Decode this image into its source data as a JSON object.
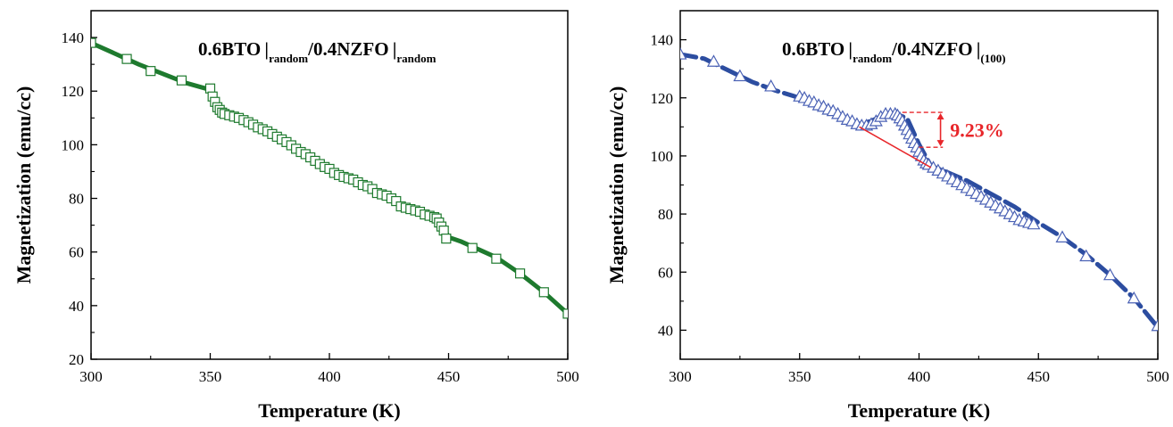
{
  "chart_data": [
    {
      "type": "line",
      "title_parts": {
        "a": "0.6BTO",
        "b": "random",
        "c": "/0.4NZFO",
        "d": "random"
      },
      "xlabel": "Temperature (K)",
      "ylabel": "Magnetization (emu/cc)",
      "xlim": [
        300,
        500
      ],
      "ylim": [
        20,
        150
      ],
      "xticks": [
        300,
        350,
        400,
        450,
        500
      ],
      "yticks": [
        20,
        40,
        60,
        80,
        100,
        120,
        140
      ],
      "grid": false,
      "line_color": "#1e7a2e",
      "marker_color": "#1e7a2e",
      "marker": "square",
      "line": {
        "x": [
          300,
          310,
          320,
          330,
          340,
          350,
          352,
          354,
          356,
          360,
          370,
          380,
          390,
          400,
          410,
          420,
          430,
          440,
          445,
          448,
          450,
          455,
          460,
          470,
          480,
          490,
          495,
          500
        ],
        "y": [
          138,
          134,
          130,
          126.5,
          123,
          120.5,
          117,
          113,
          111.5,
          110.5,
          106.5,
          102,
          96.5,
          91,
          87,
          82,
          77,
          73.5,
          72,
          69,
          65.5,
          64,
          62,
          58,
          52,
          45,
          41,
          37
        ]
      },
      "markers": {
        "x": [
          300,
          315,
          325,
          338,
          350,
          351,
          352,
          353,
          354,
          355,
          356,
          358,
          360,
          362,
          364,
          366,
          368,
          370,
          372,
          374,
          376,
          378,
          380,
          382,
          384,
          386,
          388,
          390,
          392,
          394,
          396,
          398,
          400,
          402,
          404,
          406,
          408,
          410,
          412,
          414,
          416,
          418,
          420,
          422,
          424,
          426,
          428,
          430,
          432,
          434,
          436,
          438,
          440,
          442,
          444,
          445,
          446,
          447,
          448,
          449,
          460,
          470,
          480,
          490,
          500
        ],
        "y": [
          138,
          132,
          127.5,
          124,
          121,
          118,
          116,
          114,
          113,
          112,
          111.5,
          111,
          110.5,
          110,
          109.2,
          108.4,
          107.5,
          106.5,
          105.8,
          105,
          104,
          103,
          102,
          101,
          99.8,
          98.5,
          97.3,
          96.5,
          95.3,
          94,
          92.8,
          91.7,
          91,
          89.5,
          88.7,
          88,
          87.5,
          87,
          86,
          85,
          84.5,
          83.5,
          82,
          81.5,
          81,
          80,
          79,
          77,
          76.5,
          76,
          75.5,
          75,
          74,
          73.5,
          73,
          72.5,
          71,
          69.5,
          68,
          65,
          61.5,
          57.5,
          52,
          45,
          37
        ]
      }
    },
    {
      "type": "line",
      "title_parts": {
        "a": "0.6BTO",
        "b": "random",
        "c": "/0.4NZFO",
        "d": "(100)"
      },
      "xlabel": "Temperature (K)",
      "ylabel": "Magnetization (emu/cc)",
      "xlim": [
        300,
        500
      ],
      "ylim": [
        30,
        150
      ],
      "xticks": [
        300,
        350,
        400,
        450,
        500
      ],
      "yticks": [
        40,
        60,
        80,
        100,
        120,
        140
      ],
      "grid": false,
      "line_color": "#2c4da0",
      "marker_color": "#4b62b5",
      "marker": "triangle",
      "annotation": {
        "text": "9.23%",
        "color": "#e8262a",
        "y_top": 115,
        "y_bottom": 103,
        "tangent": {
          "x": [
            375,
            405
          ],
          "y": [
            110,
            96
          ]
        }
      },
      "line": {
        "x": [
          300,
          310,
          320,
          330,
          340,
          350,
          360,
          370,
          375,
          380,
          385,
          390,
          395,
          400,
          405,
          410,
          420,
          430,
          440,
          450,
          460,
          470,
          480,
          490,
          500
        ],
        "y": [
          135,
          133.5,
          129.5,
          125.5,
          122.5,
          120,
          116.5,
          112.5,
          111,
          112,
          114,
          114.5,
          113,
          104,
          96.5,
          95,
          91.5,
          87,
          82.5,
          77,
          72,
          66,
          59,
          51,
          41
        ]
      },
      "markers": {
        "x": [
          300,
          314,
          325,
          338,
          350,
          352,
          354,
          356,
          358,
          360,
          362,
          364,
          366,
          368,
          370,
          372,
          374,
          376,
          378,
          380,
          382,
          384,
          386,
          388,
          390,
          391,
          392,
          393,
          394,
          395,
          396,
          397,
          398,
          399,
          400,
          401,
          402,
          403,
          404,
          406,
          408,
          410,
          412,
          414,
          416,
          418,
          420,
          422,
          424,
          426,
          428,
          430,
          432,
          434,
          436,
          438,
          440,
          442,
          444,
          446,
          448,
          460,
          470,
          480,
          490,
          500
        ],
        "y": [
          135,
          132.5,
          127.5,
          124,
          120.5,
          120,
          119,
          118.5,
          117.5,
          117,
          116,
          115.5,
          114.5,
          113.5,
          112.5,
          112,
          111,
          110.5,
          110.5,
          111,
          112,
          113.5,
          114.5,
          114.5,
          114.5,
          114,
          113,
          112,
          110.5,
          109,
          107.5,
          106,
          104.5,
          103,
          101.5,
          100,
          98.5,
          97.5,
          97,
          96,
          95,
          94,
          93,
          92,
          91,
          90,
          89,
          88,
          87,
          86,
          85,
          84,
          83,
          82,
          81,
          80,
          79,
          78,
          77.5,
          77,
          76.5,
          72,
          65.5,
          59,
          51,
          41.5
        ]
      }
    }
  ]
}
